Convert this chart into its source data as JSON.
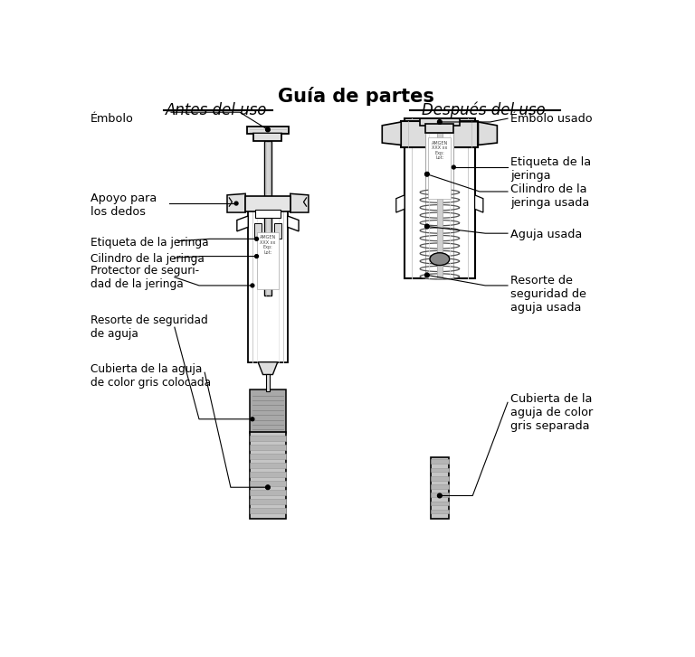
{
  "title": "Guía de partes",
  "subtitle_left": "Antes del uso",
  "subtitle_right": "Después del uso",
  "bg_color": "#ffffff",
  "text_color": "#000000",
  "label_embolo_left": "Émbolo",
  "label_apoyo": "Apoyo para\nlos dedos",
  "label_etiqueta_left": "Etiqueta de la jeringa",
  "label_cilindro_left": "Cilindro de la jeringa",
  "label_protector": "Protector de seguri-\ndad de la jeringa",
  "label_resorte_left": "Resorte de seguridad\nde aguja",
  "label_cubierta_left": "Cubierta de la aguja\nde color gris colocada",
  "label_embolo_right": "Émbolo usado",
  "label_etiqueta_right": "Etiqueta de la\njeringa",
  "label_cilindro_right": "Cilindro de la\njeringa usada",
  "label_aguja": "Aguja usada",
  "label_resorte_right": "Resorte de\nseguridad de\naguja usada",
  "label_cubierta_right": "Cubierta de la\naguja de color\ngris separada"
}
